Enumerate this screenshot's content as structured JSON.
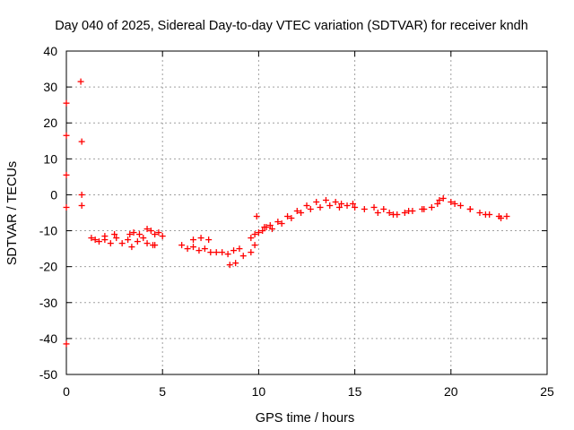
{
  "chart_data": {
    "type": "scatter",
    "title": "Day 040 of 2025, Sidereal Day-to-day VTEC variation (SDTVAR) for receiver kndh",
    "xlabel": "GPS time / hours",
    "ylabel": "SDTVAR / TECUs",
    "xlim": [
      0,
      25
    ],
    "ylim": [
      -50,
      40
    ],
    "xticks": [
      0,
      5,
      10,
      15,
      20,
      25
    ],
    "yticks": [
      -50,
      -40,
      -30,
      -20,
      -10,
      0,
      10,
      20,
      30,
      40
    ],
    "grid": true,
    "marker": "+",
    "color": "#ff0000",
    "series": [
      {
        "name": "SDTVAR",
        "x": [
          0.0,
          0.0,
          0.0,
          0.0,
          0.0,
          0.75,
          0.8,
          0.8,
          0.8,
          1.3,
          1.5,
          1.7,
          2.0,
          2.3,
          2.6,
          2.9,
          3.2,
          3.3,
          3.5,
          3.8,
          4.0,
          4.2,
          4.4,
          4.6,
          4.8,
          5.0,
          4.2,
          4.5,
          3.7,
          3.4,
          4.6,
          2.0,
          2.5,
          6.0,
          6.3,
          6.6,
          6.9,
          7.2,
          7.5,
          7.8,
          8.1,
          8.4,
          8.7,
          9.0,
          6.6,
          7.0,
          7.4,
          8.5,
          8.8,
          9.2,
          9.6,
          9.8,
          9.6,
          9.8,
          10.0,
          10.2,
          10.4,
          10.6,
          11.0,
          11.5,
          12.0,
          12.5,
          13.0,
          13.5,
          14.0,
          14.3,
          14.6,
          14.9,
          9.9,
          10.3,
          10.7,
          11.2,
          11.7,
          12.2,
          12.7,
          13.2,
          13.7,
          14.2,
          15.0,
          15.5,
          16.0,
          16.5,
          16.8,
          17.2,
          17.6,
          18.0,
          18.5,
          19.0,
          19.3,
          19.6,
          20.0,
          20.5,
          21.0,
          21.5,
          22.0,
          22.5,
          22.9,
          16.2,
          17.0,
          17.8,
          18.6,
          19.4,
          20.2,
          21.0,
          21.8,
          22.6
        ],
        "y": [
          25.5,
          16.5,
          5.5,
          -3.5,
          -41.5,
          31.5,
          14.8,
          0.0,
          -3.0,
          -12.0,
          -12.5,
          -13.0,
          -12.5,
          -13.5,
          -12.0,
          -13.5,
          -12.5,
          -11.0,
          -10.5,
          -11.0,
          -12.0,
          -9.5,
          -10.0,
          -11.0,
          -10.5,
          -11.5,
          -13.5,
          -14.0,
          -13.0,
          -14.5,
          -14.0,
          -11.5,
          -11.0,
          -14.0,
          -15.0,
          -14.5,
          -15.5,
          -15.0,
          -16.0,
          -16.0,
          -16.0,
          -16.5,
          -15.5,
          -15.0,
          -12.5,
          -12.0,
          -12.5,
          -19.5,
          -19.0,
          -17.0,
          -16.0,
          -14.0,
          -12.0,
          -11.0,
          -10.5,
          -10.0,
          -9.0,
          -8.5,
          -7.5,
          -6.0,
          -4.5,
          -3.0,
          -2.0,
          -1.5,
          -2.0,
          -2.5,
          -3.0,
          -2.5,
          -6.0,
          -9.0,
          -9.5,
          -8.0,
          -6.5,
          -5.0,
          -4.0,
          -3.5,
          -3.0,
          -3.5,
          -3.5,
          -4.0,
          -3.5,
          -4.0,
          -5.0,
          -5.5,
          -5.0,
          -4.5,
          -4.0,
          -3.5,
          -2.5,
          -1.0,
          -2.0,
          -3.0,
          -4.0,
          -5.0,
          -5.5,
          -6.0,
          -6.0,
          -5.0,
          -5.5,
          -4.5,
          -4.0,
          -1.5,
          -2.5,
          -4.0,
          -5.5,
          -6.5
        ]
      }
    ]
  }
}
